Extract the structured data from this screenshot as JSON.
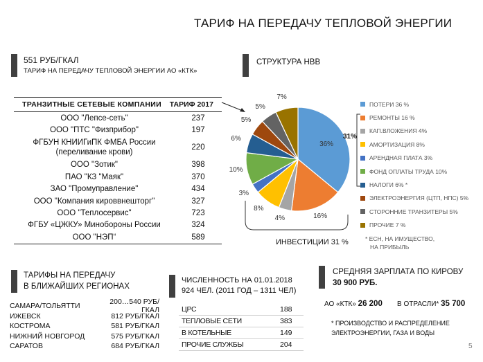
{
  "slide": {
    "title": "ТАРИФ НА ПЕРЕДАЧУ ТЕПЛОВОЙ ЭНЕРГИИ",
    "page_number": "5"
  },
  "tariff": {
    "value": "551 РУБ/ГКАЛ",
    "caption": "ТАРИФ НА ПЕРЕДАЧУ ТЕПЛОВОЙ ЭНЕРГИИ АО «КТК»"
  },
  "transit": {
    "col_name": "ТРАНЗИТНЫЕ СЕТЕВЫЕ КОМПАНИИ",
    "col_value": "ТАРИФ 2017",
    "rows": [
      {
        "name": "ООО \"Лепсе-сеть\"",
        "value": "237"
      },
      {
        "name": "ООО \"ПТС \"Физприбор\"",
        "value": "197"
      },
      {
        "name": "ФГБУН КНИИГиПК ФМБА России (переливание крови)",
        "value": "220"
      },
      {
        "name": "ООО \"Зотик\"",
        "value": "398"
      },
      {
        "name": "ПАО \"КЗ \"Маяк\"",
        "value": "370"
      },
      {
        "name": "ЗАО \"Промуправление\"",
        "value": "434"
      },
      {
        "name": "ООО \"Компания кироввнешторг\"",
        "value": "327"
      },
      {
        "name": "ООО \"Теплосервис\"",
        "value": "723"
      },
      {
        "name": "ФГБУ «ЦЖКУ» Минобороны России",
        "value": "324"
      },
      {
        "name": "ООО \"НЭП“",
        "value": "589"
      }
    ]
  },
  "structure": {
    "heading": "СТРУКТУРА НВВ",
    "bracket_label": "31%",
    "investments": "ИНВЕСТИЦИИ 31 %",
    "footnote_line1": "* ЕСН, НА ИМУЩЕСТВО,",
    "footnote_line2": "НА ПРИБЫЛЬ"
  },
  "chart_data": {
    "type": "pie",
    "title": "СТРУКТУРА НВВ",
    "series": [
      {
        "name": "ПОТЕРИ 36 %",
        "value": 36,
        "color": "#5B9BD5"
      },
      {
        "name": "РЕМОНТЫ 16 %",
        "value": 16,
        "color": "#ED7D31"
      },
      {
        "name": "КАП.ВЛОЖЕНИЯ 4%",
        "value": 4,
        "color": "#A5A5A5"
      },
      {
        "name": "АМОРТИЗАЦИЯ 8%",
        "value": 8,
        "color": "#FFC000"
      },
      {
        "name": "АРЕНДНАЯ ПЛАТА 3%",
        "value": 3,
        "color": "#4472C4"
      },
      {
        "name": "ФОНД ОПЛАТЫ ТРУДА 10%",
        "value": 10,
        "color": "#70AD47"
      },
      {
        "name": "НАЛОГИ 6% *",
        "value": 6,
        "color": "#255E91"
      },
      {
        "name": "ЭЛЕКТРОЭНЕРГИЯ (ЦТП, НПС) 5%",
        "value": 5,
        "color": "#9E480E"
      },
      {
        "name": "СТОРОННИЕ ТРАНЗИТЕРЫ 5%",
        "value": 5,
        "color": "#636363"
      },
      {
        "name": "ПРОЧИЕ 7 %",
        "value": 7,
        "color": "#997300"
      }
    ],
    "slice_labels": [
      "36%",
      "16%",
      "4%",
      "8%",
      "3%",
      "10%",
      "6%",
      "5%",
      "5%",
      "7%"
    ],
    "legend_placement": "right"
  },
  "regions": {
    "heading_line1": "ТАРИФЫ НА ПЕРЕДАЧУ",
    "heading_line2": "В БЛИЖАЙШИХ РЕГИОНАХ",
    "rows": [
      {
        "city": "САМАРА/ТОЛЬЯТТИ",
        "price": "200…540 РУБ/ГКАЛ"
      },
      {
        "city": "ИЖЕВСК",
        "price": "812 РУБ/ГКАЛ"
      },
      {
        "city": "КОСТРОМА",
        "price": "581 РУБ/ГКАЛ"
      },
      {
        "city": "НИЖНИЙ НОВГОРОД",
        "price": "575 РУБ/ГКАЛ"
      },
      {
        "city": "САРАТОВ",
        "price": "684 РУБ/ГКАЛ"
      }
    ]
  },
  "headcount": {
    "heading_line1": "ЧИСЛЕННОСТЬ НА 01.01.2018",
    "heading_line2": "924 ЧЕЛ. (2011 ГОД – 1311 ЧЕЛ)",
    "rows": [
      {
        "name": "ЦРС",
        "value": "188"
      },
      {
        "name": "ТЕПЛОВЫЕ СЕТИ",
        "value": "383"
      },
      {
        "name": "В КОТЕЛЬНЫЕ",
        "value": "149"
      },
      {
        "name": "ПРОЧИЕ СЛУЖБЫ",
        "value": "204"
      }
    ]
  },
  "salary": {
    "heading_line1": "СРЕДНЯЯ ЗАРПЛАТА ПО КИРОВУ",
    "heading_line2": "30 900 РУБ.",
    "ktk_label": "АО «КТК»",
    "ktk_value": "26 200",
    "industry_label": "В ОТРАСЛИ*",
    "industry_value": "35 700",
    "footnote_line1": "* ПРОИЗВОДСТВО И РАСПРЕДЕЛЕНИЕ",
    "footnote_line2": "ЭЛЕКТРОЭНЕРГИИ, ГАЗА И ВОДЫ"
  }
}
